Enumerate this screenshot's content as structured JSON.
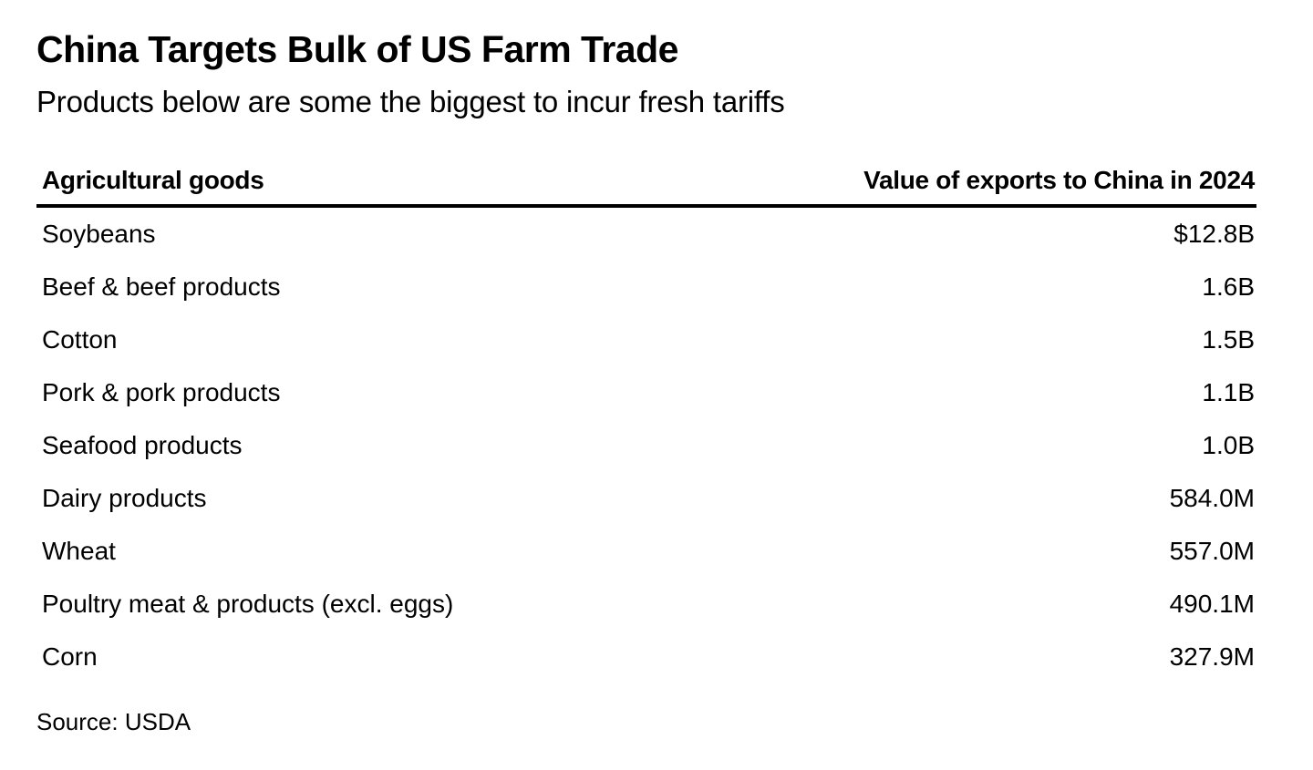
{
  "header": {
    "title": "China Targets Bulk of US Farm Trade",
    "subtitle": "Products below are some the biggest to incur fresh tariffs"
  },
  "table": {
    "columns": [
      "Agricultural goods",
      "Value of exports to China in 2024"
    ],
    "rows": [
      {
        "good": "Soybeans",
        "value": "$12.8B"
      },
      {
        "good": "Beef & beef products",
        "value": "1.6B"
      },
      {
        "good": "Cotton",
        "value": "1.5B"
      },
      {
        "good": "Pork & pork products",
        "value": "1.1B"
      },
      {
        "good": "Seafood products",
        "value": "1.0B"
      },
      {
        "good": "Dairy products",
        "value": "584.0M"
      },
      {
        "good": "Wheat",
        "value": "557.0M"
      },
      {
        "good": "Poultry meat & products (excl. eggs)",
        "value": "490.1M"
      },
      {
        "good": "Corn",
        "value": "327.9M"
      }
    ]
  },
  "footer": {
    "source": "Source: USDA"
  },
  "chart_data": {
    "type": "table",
    "title": "China Targets Bulk of US Farm Trade",
    "subtitle": "Products below are some the biggest to incur fresh tariffs",
    "columns": [
      "Agricultural goods",
      "Value of exports to China in 2024"
    ],
    "categories": [
      "Soybeans",
      "Beef & beef products",
      "Cotton",
      "Pork & pork products",
      "Seafood products",
      "Dairy products",
      "Wheat",
      "Poultry meat & products (excl. eggs)",
      "Corn"
    ],
    "values_display": [
      "$12.8B",
      "1.6B",
      "1.5B",
      "1.1B",
      "1.0B",
      "584.0M",
      "557.0M",
      "490.1M",
      "327.9M"
    ],
    "values_usd_millions": [
      12800,
      1600,
      1500,
      1100,
      1000,
      584.0,
      557.0,
      490.1,
      327.9
    ],
    "source": "Source: USDA"
  }
}
